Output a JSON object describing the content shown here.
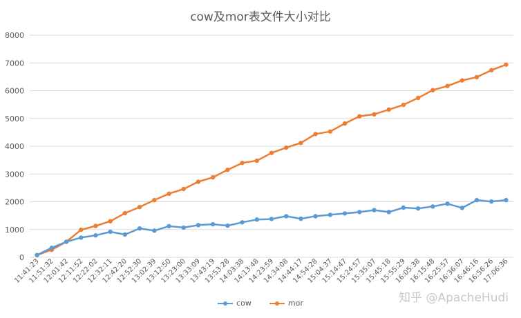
{
  "chart_data": {
    "type": "line",
    "title": "cow及mor表文件大小对比",
    "ylim": [
      0,
      8000
    ],
    "yticks": [
      0,
      1000,
      2000,
      3000,
      4000,
      5000,
      6000,
      7000,
      8000
    ],
    "grid": true,
    "legend_position": "bottom",
    "categories": [
      "11:41:23",
      "11:51:32",
      "12:01:42",
      "12:11:52",
      "12:22:02",
      "12:32:11",
      "12:42:20",
      "12:52:30",
      "13:02:39",
      "13:12:50",
      "13:23:00",
      "13:33:09",
      "13:43:19",
      "13:53:28",
      "14:03:38",
      "14:13:48",
      "14:23:59",
      "14:34:08",
      "14:44:17",
      "14:54:28",
      "15:04:37",
      "15:14:47",
      "15:24:57",
      "15:35:07",
      "15:45:18",
      "15:55:29",
      "16:05:38",
      "16:15:48",
      "16:25:57",
      "16:36:07",
      "16:46:16",
      "16:56:26",
      "17:06:36"
    ],
    "series": [
      {
        "name": "cow",
        "color": "#5b9bd5",
        "values": [
          80,
          340,
          560,
          710,
          790,
          920,
          820,
          1040,
          960,
          1120,
          1070,
          1160,
          1190,
          1140,
          1260,
          1360,
          1380,
          1480,
          1390,
          1480,
          1530,
          1580,
          1630,
          1700,
          1630,
          1790,
          1760,
          1830,
          1930,
          1780,
          2060,
          2010,
          2060
        ]
      },
      {
        "name": "mor",
        "color": "#ed7d31",
        "values": [
          80,
          270,
          560,
          990,
          1130,
          1300,
          1590,
          1810,
          2060,
          2290,
          2460,
          2720,
          2880,
          3150,
          3400,
          3480,
          3760,
          3950,
          4120,
          4440,
          4530,
          4820,
          5080,
          5150,
          5320,
          5490,
          5740,
          6020,
          6170,
          6370,
          6490,
          6740,
          6940
        ]
      }
    ]
  },
  "watermark": "知乎 @ApacheHudi",
  "colors": {
    "grid": "#d9d9d9",
    "axis_text": "#595959"
  }
}
